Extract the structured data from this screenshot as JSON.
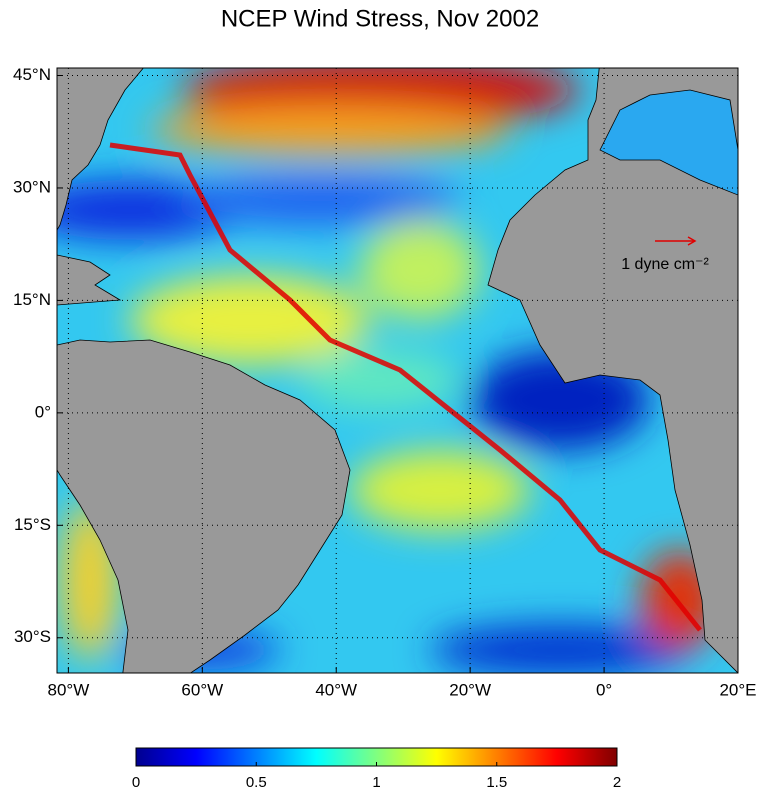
{
  "chart_data": {
    "type": "map",
    "title": "NCEP Wind Stress, Nov 2002",
    "xlim": [
      -81.7,
      20
    ],
    "ylim": [
      -34.7,
      46
    ],
    "xticks": [
      {
        "value": -80,
        "label": "80°W"
      },
      {
        "value": -60,
        "label": "60°W"
      },
      {
        "value": -40,
        "label": "40°W"
      },
      {
        "value": -20,
        "label": "20°W"
      },
      {
        "value": 0,
        "label": "0°"
      },
      {
        "value": 20,
        "label": "20°E"
      }
    ],
    "yticks": [
      {
        "value": 45,
        "label": "45°N"
      },
      {
        "value": 30,
        "label": "30°N"
      },
      {
        "value": 15,
        "label": "15°N"
      },
      {
        "value": 0,
        "label": "0°"
      },
      {
        "value": -15,
        "label": "15°S"
      },
      {
        "value": -30,
        "label": "30°S"
      }
    ],
    "grid": true,
    "scale_arrow_label": "1 dyne cm⁻²",
    "colorbar": {
      "colormap": "jet",
      "lim": [
        0,
        2
      ],
      "ticks": [
        0,
        0.5,
        1,
        1.5,
        2
      ]
    }
  }
}
